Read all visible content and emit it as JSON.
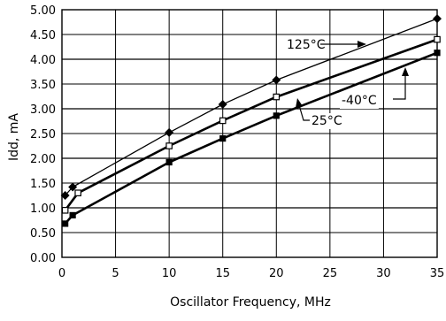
{
  "chart_data": {
    "type": "line",
    "title": "",
    "xlabel": "Oscillator Frequency, MHz",
    "ylabel": "Idd, mA",
    "xlim": [
      0,
      35
    ],
    "ylim": [
      0,
      5
    ],
    "x_ticks": [
      0,
      5,
      10,
      15,
      20,
      25,
      30,
      35
    ],
    "x_tick_labels": [
      "0",
      "5",
      "10",
      "15",
      "20",
      "25",
      "30",
      "35"
    ],
    "y_ticks": [
      0,
      0.5,
      1,
      1.5,
      2,
      2.5,
      3,
      3.5,
      4,
      4.5,
      5
    ],
    "y_tick_labels": [
      "0.00",
      "0.50",
      "1.00",
      "1.50",
      "2.00",
      "2.50",
      "3.00",
      "3.50",
      "4.00",
      "4.50",
      "5.00"
    ],
    "grid": true,
    "series": [
      {
        "name": "125°C",
        "marker": "diamond",
        "points": [
          [
            0.3,
            1.25
          ],
          [
            1,
            1.42
          ],
          [
            10,
            2.52
          ],
          [
            15,
            3.09
          ],
          [
            20,
            3.58
          ],
          [
            35,
            4.82
          ]
        ]
      },
      {
        "name": "25°C",
        "marker": "open-square",
        "points": [
          [
            0.3,
            0.95
          ],
          [
            1.5,
            1.3
          ],
          [
            10,
            2.25
          ],
          [
            15,
            2.76
          ],
          [
            20,
            3.24
          ],
          [
            35,
            4.4
          ]
        ]
      },
      {
        "name": "-40°C",
        "marker": "filled-square",
        "points": [
          [
            0.3,
            0.68
          ],
          [
            1,
            0.85
          ],
          [
            10,
            1.92
          ],
          [
            15,
            2.4
          ],
          [
            20,
            2.86
          ],
          [
            35,
            4.13
          ]
        ]
      }
    ]
  }
}
